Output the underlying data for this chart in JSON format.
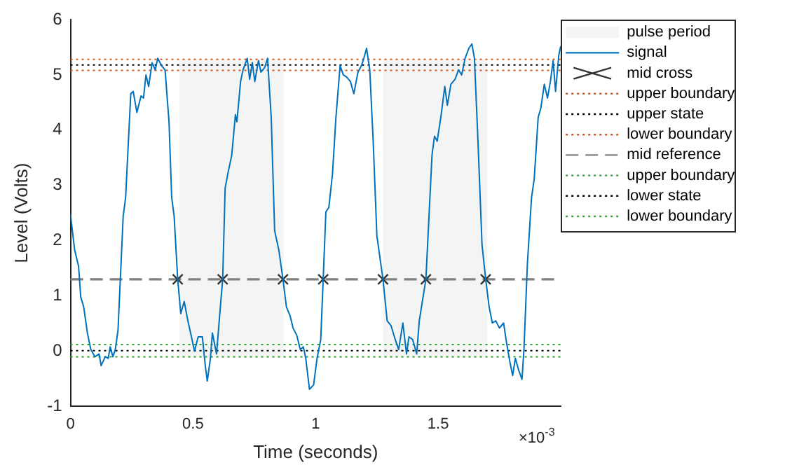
{
  "chart_data": {
    "type": "line",
    "xlabel": "Time (seconds)",
    "ylabel": "Level (Volts)",
    "xlim": [
      0,
      2
    ],
    "xticks": [
      0,
      0.5,
      1,
      1.5
    ],
    "ylim": [
      -1,
      6
    ],
    "yticks": [
      -1,
      0,
      1,
      2,
      3,
      4,
      5,
      6
    ],
    "grid": false,
    "legend": "right",
    "annotations": [
      "×10$^{-3}$"
    ],
    "bands": [
      {
        "axis": "x",
        "from": 0.444,
        "to": 0.87,
        "label": "pulse period",
        "color": "#f4f4f4"
      },
      {
        "axis": "x",
        "from": 1.275,
        "to": 1.7,
        "color": "#f4f4f4"
      }
    ],
    "series": [
      {
        "name": "signal",
        "color": "#0072bd",
        "marker": "none",
        "line_style": "solid",
        "x": [
          0,
          0.017,
          0.033,
          0.042,
          0.054,
          0.069,
          0.083,
          0.1,
          0.117,
          0.125,
          0.142,
          0.154,
          0.162,
          0.173,
          0.183,
          0.194,
          0.215,
          0.225,
          0.246,
          0.256,
          0.271,
          0.288,
          0.298,
          0.308,
          0.319,
          0.333,
          0.346,
          0.356,
          0.371,
          0.386,
          0.402,
          0.413,
          0.423,
          0.4375,
          0.45,
          0.464,
          0.479,
          0.496,
          0.506,
          0.521,
          0.538,
          0.55,
          0.558,
          0.571,
          0.579,
          0.596,
          0.61,
          0.621,
          0.631,
          0.642,
          0.658,
          0.673,
          0.679,
          0.694,
          0.704,
          0.721,
          0.731,
          0.742,
          0.752,
          0.767,
          0.777,
          0.792,
          0.804,
          0.819,
          0.833,
          0.85,
          0.867,
          0.881,
          0.896,
          0.908,
          0.923,
          0.9375,
          0.95,
          0.96,
          0.975,
          0.992,
          1.006,
          1.021,
          1.031,
          1.042,
          1.054,
          1.069,
          1.083,
          1.1,
          1.113,
          1.127,
          1.142,
          1.156,
          1.173,
          1.1875,
          1.2,
          1.208,
          1.221,
          1.235,
          1.25,
          1.275,
          1.292,
          1.308,
          1.325,
          1.339,
          1.356,
          1.371,
          1.381,
          1.396,
          1.4125,
          1.423,
          1.45,
          1.475,
          1.485,
          1.496,
          1.5125,
          1.527,
          1.5375,
          1.552,
          1.569,
          1.583,
          1.596,
          1.61,
          1.625,
          1.6375,
          1.648,
          1.6625,
          1.679,
          1.694,
          1.708,
          1.721,
          1.735,
          1.75,
          1.767,
          1.777,
          1.792,
          1.804,
          1.815,
          1.829,
          1.842,
          1.85,
          1.864,
          1.881,
          1.892,
          1.908,
          1.919,
          1.933,
          1.946,
          1.958,
          1.969,
          1.979,
          1.992,
          2.0
        ],
        "values": [
          2.48,
          1.83,
          1.54,
          0.98,
          0.8,
          0.33,
          0.03,
          -0.1,
          -0.05,
          -0.26,
          -0.1,
          -0.13,
          0.08,
          -0.1,
          0.03,
          0.38,
          2.44,
          2.78,
          4.66,
          4.7,
          4.32,
          4.62,
          4.58,
          5.0,
          4.79,
          5.22,
          5.09,
          5.3,
          5.17,
          5.09,
          4.15,
          2.78,
          2.44,
          1.3,
          0.68,
          0.9,
          0.55,
          0.21,
          0,
          0.26,
          0.26,
          -0.26,
          -0.54,
          -0.13,
          0.33,
          -0.05,
          0.72,
          1.3,
          2.95,
          3.21,
          3.55,
          4.28,
          4.15,
          4.88,
          5.09,
          5.3,
          4.92,
          5.22,
          4.88,
          5.26,
          5.05,
          5.13,
          5.3,
          4.23,
          2.18,
          1.83,
          1.3,
          0.8,
          0.64,
          0.42,
          0.29,
          0.03,
          0.08,
          -0.13,
          -0.69,
          -0.61,
          -0.13,
          0.21,
          1.3,
          2.52,
          2.6,
          3.21,
          4.23,
          5.17,
          5.0,
          4.96,
          4.88,
          4.66,
          5.05,
          5.17,
          5.35,
          5.48,
          5.09,
          3.8,
          2.09,
          1.3,
          0.55,
          0.46,
          0.21,
          0.03,
          0.51,
          -0.05,
          0.26,
          0.21,
          -0.05,
          0.55,
          1.3,
          3.55,
          3.89,
          3.8,
          4.28,
          4.79,
          4.45,
          4.83,
          4.92,
          5.09,
          5.0,
          5.3,
          5.48,
          5.56,
          5.3,
          3.8,
          1.92,
          1.3,
          0.8,
          0.51,
          0.55,
          0.42,
          0.51,
          0.21,
          -0.18,
          -0.44,
          -0.13,
          -0.35,
          -0.51,
          0.03,
          1.58,
          2.78,
          3.12,
          4.23,
          4.4,
          4.83,
          4.58,
          4.88,
          5.26,
          4.7,
          5.35,
          5.52
        ]
      },
      {
        "name": "mid cross",
        "type": "scatter",
        "color": "#333333",
        "marker": "cross",
        "x": [
          0.4375,
          0.621,
          0.867,
          1.031,
          1.275,
          1.45,
          1.694
        ],
        "values": [
          1.3,
          1.3,
          1.3,
          1.3,
          1.3,
          1.3,
          1.3
        ]
      }
    ],
    "ref_lines": [
      {
        "axis": "y",
        "value": 5.28,
        "label": "upper boundary",
        "color": "#d95319",
        "line_style": "dotted"
      },
      {
        "axis": "y",
        "value": 5.18,
        "label": "upper state",
        "color": "#000000",
        "line_style": "dotted"
      },
      {
        "axis": "y",
        "value": 5.08,
        "label": "lower boundary",
        "color": "#d95319",
        "line_style": "dotted"
      },
      {
        "axis": "y",
        "value": 1.3,
        "label": "mid reference",
        "color": "#808080",
        "line_style": "dashed"
      },
      {
        "axis": "y",
        "value": 0.12,
        "label": "upper boundary",
        "color": "#2ca02c",
        "line_style": "dotted"
      },
      {
        "axis": "y",
        "value": 0.01,
        "label": "lower state",
        "color": "#000000",
        "line_style": "dotted"
      },
      {
        "axis": "y",
        "value": -0.1,
        "label": "lower boundary",
        "color": "#2ca02c",
        "line_style": "dotted"
      }
    ]
  }
}
